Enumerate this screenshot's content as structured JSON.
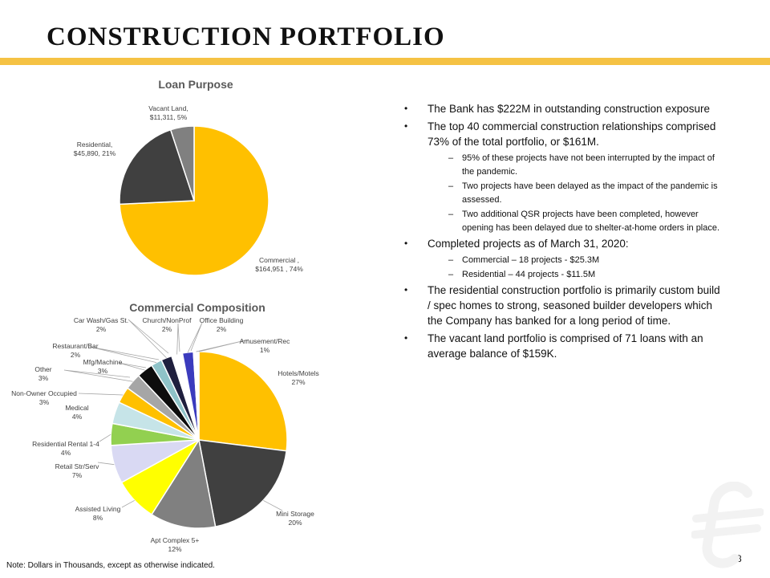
{
  "page": {
    "title": "CONSTRUCTION PORTFOLIO",
    "note": "Note: Dollars in Thousands, except as otherwise indicated.",
    "page_number": "8",
    "logo_icon": "bank-logo-icon",
    "accent_color": "#f5c244"
  },
  "chart_data": [
    {
      "type": "pie",
      "title": "Loan Purpose",
      "slices": [
        {
          "label": "Commercial ,",
          "value_label": "$164,951 , 74%",
          "value": 164951,
          "percent": 74,
          "color": "#ffc000"
        },
        {
          "label": "Residential,",
          "value_label": "$45,890, 21%",
          "value": 45890,
          "percent": 21,
          "color": "#404040"
        },
        {
          "label": "Vacant Land,",
          "value_label": "$11,311, 5%",
          "value": 11311,
          "percent": 5,
          "color": "#808080"
        }
      ]
    },
    {
      "type": "pie",
      "title": "Commercial Composition",
      "slices": [
        {
          "label": "Hotels/Motels",
          "value_label": "27%",
          "value": 27,
          "color": "#ffc000"
        },
        {
          "label": "Mini Storage",
          "value_label": "20%",
          "value": 20,
          "color": "#404040"
        },
        {
          "label": "Apt Complex 5+",
          "value_label": "12%",
          "value": 12,
          "color": "#808080"
        },
        {
          "label": "Assisted Living",
          "value_label": "8%",
          "value": 8,
          "color": "#ffff00"
        },
        {
          "label": "Retail Str/Serv",
          "value_label": "7%",
          "value": 7,
          "color": "#d9d9f3"
        },
        {
          "label": "Residential Rental 1-4",
          "value_label": "4%",
          "value": 4,
          "color": "#92d050"
        },
        {
          "label": "Medical",
          "value_label": "4%",
          "value": 4,
          "color": "#c6e4e8"
        },
        {
          "label": "Non-Owner Occupied",
          "value_label": "3%",
          "value": 3,
          "color": "#ffc000"
        },
        {
          "label": "Other",
          "value_label": "3%",
          "value": 3,
          "color": "#a6a6a6"
        },
        {
          "label": "Mfg/Machine",
          "value_label": "3%",
          "value": 3,
          "color": "#0d0d0d"
        },
        {
          "label": "Restaurant/Bar",
          "value_label": "2%",
          "value": 2,
          "color": "#8fc3c8"
        },
        {
          "label": "Car Wash/Gas St.",
          "value_label": "2%",
          "value": 2,
          "color": "#1f1f3d"
        },
        {
          "label": "Church/NonProf",
          "value_label": "2%",
          "value": 2,
          "color": "#ffffff"
        },
        {
          "label": "Office Building",
          "value_label": "2%",
          "value": 2,
          "color": "#3b3bbd"
        },
        {
          "label": "Amusement/Rec",
          "value_label": "1%",
          "value": 1,
          "color": "#ffffff"
        }
      ]
    }
  ],
  "bullets": [
    {
      "text": "The Bank has $222M in outstanding construction exposure",
      "subs": []
    },
    {
      "text": "The top 40 commercial construction relationships comprised 73% of the total portfolio, or $161M.",
      "subs": [
        "95% of these projects have not been interrupted by the impact of the pandemic.",
        "Two projects have been delayed as the impact of the pandemic is assessed.",
        "Two additional QSR projects have been completed, however opening has been delayed due to shelter-at-home orders in place."
      ]
    },
    {
      "text": "Completed projects as of March 31, 2020:",
      "subs": [
        "Commercial – 18 projects - $25.3M",
        "Residential – 44 projects - $11.5M"
      ]
    },
    {
      "text": "The residential construction portfolio is primarily custom build / spec homes to strong, seasoned builder developers which the Company has banked for a long period of time.",
      "subs": []
    },
    {
      "text": "The vacant land portfolio is comprised of 71 loans with an average balance of $159K.",
      "subs": []
    }
  ]
}
